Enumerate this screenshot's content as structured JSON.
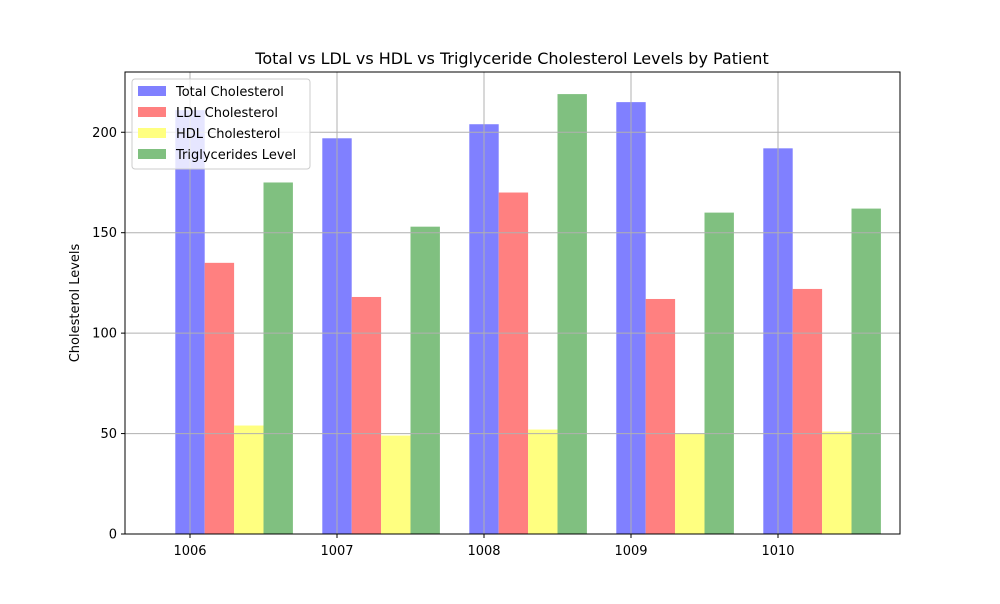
{
  "chart_data": {
    "type": "bar",
    "title": "Total vs LDL vs HDL vs Triglyceride Cholesterol Levels by Patient",
    "xlabel": "",
    "ylabel": "Cholesterol Levels",
    "categories": [
      "1006",
      "1007",
      "1008",
      "1009",
      "1010"
    ],
    "ylim": [
      0,
      230
    ],
    "yticks": [
      0,
      50,
      100,
      150,
      200
    ],
    "grid": true,
    "legend_position": "top-left",
    "series": [
      {
        "name": "Total Cholesterol",
        "color": "#8080ff",
        "values": [
          211,
          197,
          204,
          215,
          192
        ]
      },
      {
        "name": "LDL Cholesterol",
        "color": "#ff8080",
        "values": [
          135,
          118,
          170,
          117,
          122
        ]
      },
      {
        "name": "HDL Cholesterol",
        "color": "#ffff80",
        "values": [
          54,
          49,
          52,
          50,
          51
        ]
      },
      {
        "name": "Triglycerides Level",
        "color": "#80c080",
        "values": [
          175,
          153,
          219,
          160,
          162
        ]
      }
    ]
  }
}
